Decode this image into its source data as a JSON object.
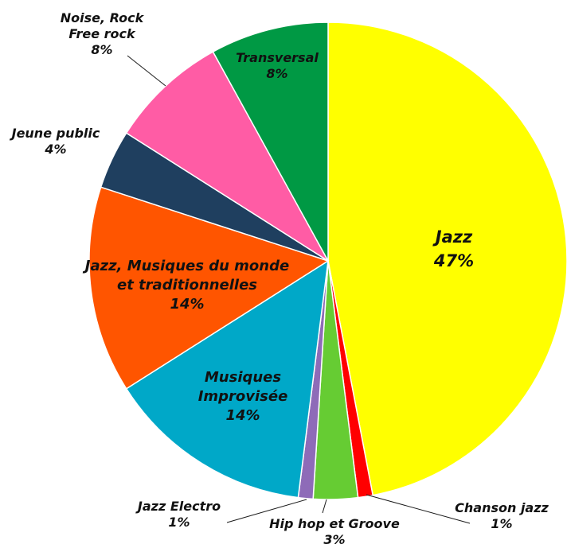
{
  "chart_data": {
    "type": "pie",
    "slices": [
      {
        "label": [
          "Jazz"
        ],
        "value": 47,
        "pct_label": "47%",
        "color": "#FFFF00"
      },
      {
        "label": [
          "Chanson jazz"
        ],
        "value": 1,
        "pct_label": "1%",
        "color": "#FF0000"
      },
      {
        "label": [
          "Hip hop et Groove"
        ],
        "value": 3,
        "pct_label": "3%",
        "color": "#66CC33"
      },
      {
        "label": [
          "Jazz Electro"
        ],
        "value": 1,
        "pct_label": "1%",
        "color": "#8E6BB8"
      },
      {
        "label": [
          "Musiques",
          "Improvisée"
        ],
        "value": 14,
        "pct_label": "14%",
        "color": "#00A8C8"
      },
      {
        "label": [
          "Jazz, Musiques du monde",
          "et traditionnelles"
        ],
        "value": 14,
        "pct_label": "14%",
        "color": "#FF5500"
      },
      {
        "label": [
          "Jeune public"
        ],
        "value": 4,
        "pct_label": "4%",
        "color": "#1F3F5F"
      },
      {
        "label": [
          "Noise, Rock",
          "Free rock"
        ],
        "value": 8,
        "pct_label": "8%",
        "color": "#FF5CA5"
      },
      {
        "label": [
          "Transversal"
        ],
        "value": 8,
        "pct_label": "8%",
        "color": "#009944"
      }
    ]
  }
}
